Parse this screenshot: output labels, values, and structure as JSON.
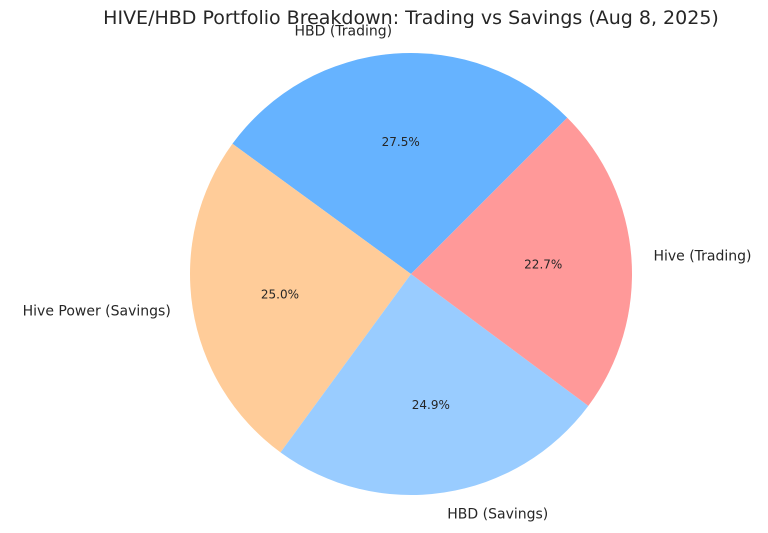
{
  "chart_data": {
    "type": "pie",
    "title": "HIVE/HBD Portfolio Breakdown: Trading vs Savings (Aug 8, 2025)",
    "start_angle_deg": 45,
    "direction": "counterclockwise",
    "slices": [
      {
        "label": "HBD (Trading)",
        "value": 27.5,
        "pct_label": "27.5%",
        "color": "#66b3ff"
      },
      {
        "label": "Hive Power (Savings)",
        "value": 25.0,
        "pct_label": "25.0%",
        "color": "#ffcc99"
      },
      {
        "label": "HBD (Savings)",
        "value": 24.9,
        "pct_label": "24.9%",
        "color": "#99ccff"
      },
      {
        "label": "Hive (Trading)",
        "value": 22.7,
        "pct_label": "22.7%",
        "color": "#ff9999"
      }
    ]
  }
}
